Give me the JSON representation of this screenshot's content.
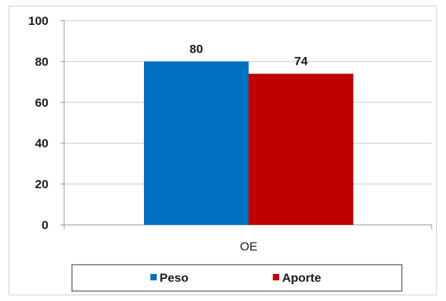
{
  "chart_data": {
    "type": "bar",
    "categories": [
      "OE"
    ],
    "series": [
      {
        "name": "Peso",
        "values": [
          80
        ],
        "color": "#0070c0"
      },
      {
        "name": "Aporte",
        "values": [
          74
        ],
        "color": "#c00000"
      }
    ],
    "ylim": [
      0,
      100
    ],
    "yticks": [
      "0",
      "20",
      "40",
      "60",
      "80",
      "100"
    ],
    "data_labels": [
      "80",
      "74"
    ],
    "grid": true,
    "legend_position": "bottom"
  }
}
